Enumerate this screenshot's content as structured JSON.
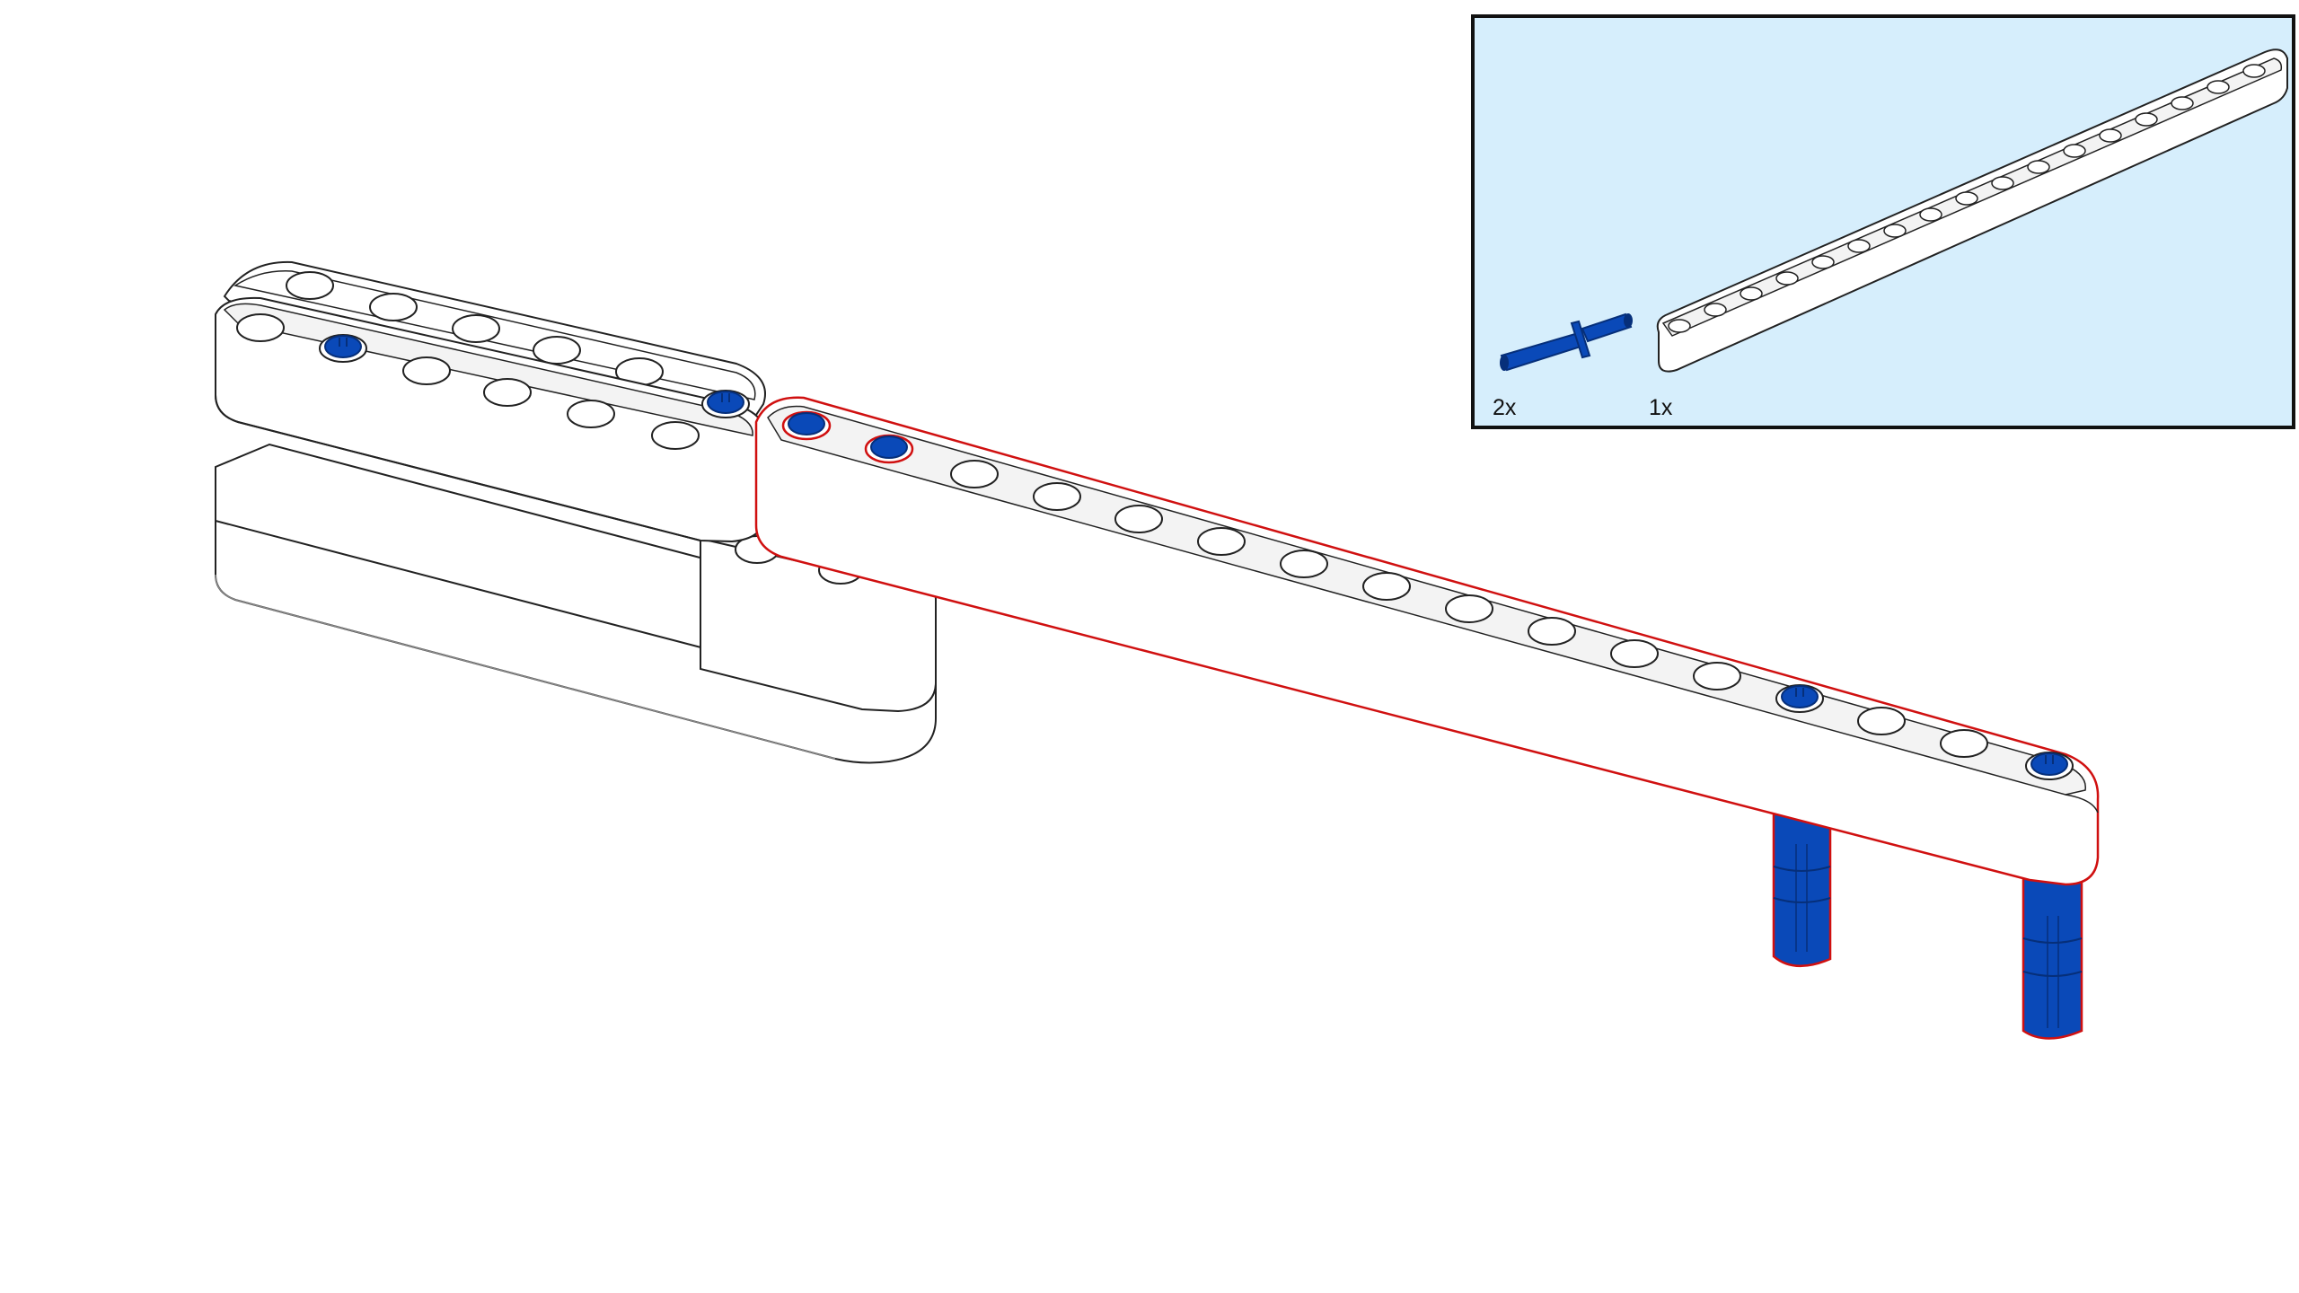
{
  "colors": {
    "callout_background": "#d6eefc",
    "callout_border": "#111111",
    "beam": "#ffffff",
    "beam_outline": "#222222",
    "pin": "#0a49b8",
    "pin_dark": "#062f7a",
    "new_part_highlight": "#d01010"
  },
  "callout": {
    "parts": [
      {
        "part": "pin-icon",
        "quantity": "2x"
      },
      {
        "part": "beam-15-icon",
        "quantity": "1x"
      }
    ]
  }
}
